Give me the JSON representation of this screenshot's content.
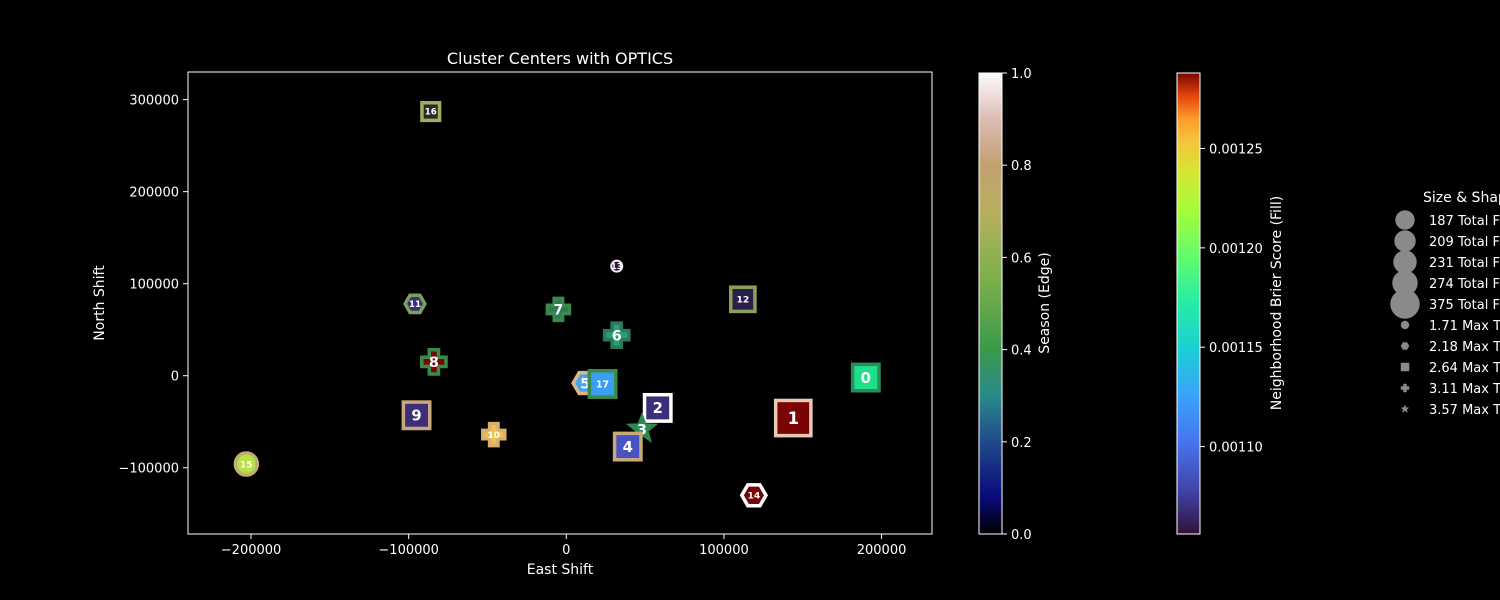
{
  "chart_data": {
    "type": "scatter",
    "title": "Cluster Centers with OPTICS",
    "xlabel": "East Shift",
    "ylabel": "North Shift",
    "xlim": [
      -240000,
      232000
    ],
    "ylim": [
      -172000,
      330000
    ],
    "x_ticks": [
      -200000,
      -100000,
      0,
      100000,
      200000
    ],
    "x_tick_labels": [
      "−200000",
      "−100000",
      "0",
      "100000",
      "200000"
    ],
    "y_ticks": [
      -100000,
      0,
      100000,
      200000,
      300000
    ],
    "y_tick_labels": [
      "−100000",
      "0",
      "100000",
      "200000",
      "300000"
    ],
    "grid": false,
    "points": [
      {
        "label": "0",
        "x": 190000,
        "y": -2000,
        "shape": "square",
        "size": 1.2,
        "fill": "#1fe08a",
        "edge": "#2e8c5a"
      },
      {
        "label": "1",
        "x": 144000,
        "y": -46000,
        "shape": "square",
        "size": 1.6,
        "fill": "#7a0403",
        "edge": "#e8c9b4"
      },
      {
        "label": "2",
        "x": 58000,
        "y": -35000,
        "shape": "square",
        "size": 1.2,
        "fill": "#3b2f7a",
        "edge": "#ffffff"
      },
      {
        "label": "3",
        "x": 48000,
        "y": -58000,
        "shape": "star",
        "size": 1.1,
        "fill": "#2f8a6e",
        "edge": "#2c8a4e"
      },
      {
        "label": "4",
        "x": 39000,
        "y": -77000,
        "shape": "square",
        "size": 1.2,
        "fill": "#4753c2",
        "edge": "#c9a87a"
      },
      {
        "label": "5",
        "x": 12000,
        "y": -8000,
        "shape": "hexagon",
        "size": 1.1,
        "fill": "#4aa3f0",
        "edge": "#d8b888"
      },
      {
        "label": "6",
        "x": 32000,
        "y": 44000,
        "shape": "plus",
        "size": 1.1,
        "fill": "#2aa07a",
        "edge": "#2a7a5a"
      },
      {
        "label": "7",
        "x": -5000,
        "y": 72000,
        "shape": "plus",
        "size": 1.0,
        "fill": "#2f7a55",
        "edge": "#3a8a4a"
      },
      {
        "label": "8",
        "x": -84000,
        "y": 15000,
        "shape": "plus",
        "size": 1.1,
        "fill": "#7a0403",
        "edge": "#3a8a4a"
      },
      {
        "label": "9",
        "x": -95000,
        "y": -43000,
        "shape": "square",
        "size": 1.2,
        "fill": "#3b2f7a",
        "edge": "#c9a87a"
      },
      {
        "label": "10",
        "x": -46000,
        "y": -64000,
        "shape": "plus",
        "size": 1.0,
        "fill": "#f0c24a",
        "edge": "#d8b070"
      },
      {
        "label": "11",
        "x": -96000,
        "y": 78000,
        "shape": "hexagon",
        "size": 0.9,
        "fill": "#3b2f7a",
        "edge": "#7aa05a"
      },
      {
        "label": "12",
        "x": 112000,
        "y": 83000,
        "shape": "square",
        "size": 1.1,
        "fill": "#2a1f4a",
        "edge": "#8aa05a"
      },
      {
        "label": "13",
        "x": 32000,
        "y": 119000,
        "shape": "circle",
        "size": 0.5,
        "fill": "#30123b",
        "edge": "#f4eef2"
      },
      {
        "label": "14",
        "x": 119000,
        "y": -130000,
        "shape": "hexagon",
        "size": 1.1,
        "fill": "#7a0403",
        "edge": "#ffffff"
      },
      {
        "label": "15",
        "x": -203000,
        "y": -96000,
        "shape": "circle",
        "size": 1.0,
        "fill": "#b8e048",
        "edge": "#c0b070"
      },
      {
        "label": "16",
        "x": -86000,
        "y": 287000,
        "shape": "square",
        "size": 0.8,
        "fill": "#2a2a2a",
        "edge": "#a0b05a"
      },
      {
        "label": "17",
        "x": 23000,
        "y": -9000,
        "shape": "square",
        "size": 1.2,
        "fill": "#3a9ff0",
        "edge": "#3a8a4a"
      }
    ],
    "colorbar_edge": {
      "label": "Season (Edge)",
      "ticks": [
        "0.0",
        "0.2",
        "0.4",
        "0.6",
        "0.8",
        "1.0"
      ],
      "range": [
        0,
        1
      ],
      "colormap": "gist_earth"
    },
    "colorbar_fill": {
      "label": "Neighborhood Brier Score (Fill)",
      "ticks": [
        "0.00110",
        "0.00115",
        "0.00120",
        "0.00125"
      ],
      "tick_values": [
        0.0011,
        0.00115,
        0.0012,
        0.00125
      ],
      "range": [
        0.001056,
        0.001288
      ],
      "colormap": "turbo"
    },
    "legend": {
      "title": "Size & Shap",
      "placement": "right, clipped",
      "entries": [
        {
          "label": "187 Total F",
          "marker": "circle",
          "size": 19
        },
        {
          "label": "209 Total F",
          "marker": "circle",
          "size": 21
        },
        {
          "label": "231 Total F",
          "marker": "circle",
          "size": 23
        },
        {
          "label": "274 Total F",
          "marker": "circle",
          "size": 25
        },
        {
          "label": "375 Total F",
          "marker": "circle",
          "size": 29
        },
        {
          "label": "1.71 Max T",
          "marker": "circle",
          "size": 8
        },
        {
          "label": "2.18 Max T",
          "marker": "hexagon",
          "size": 8
        },
        {
          "label": "2.64 Max T",
          "marker": "square",
          "size": 8
        },
        {
          "label": "3.11 Max T",
          "marker": "plus",
          "size": 8
        },
        {
          "label": "3.57 Max T",
          "marker": "star",
          "size": 8
        }
      ]
    }
  }
}
